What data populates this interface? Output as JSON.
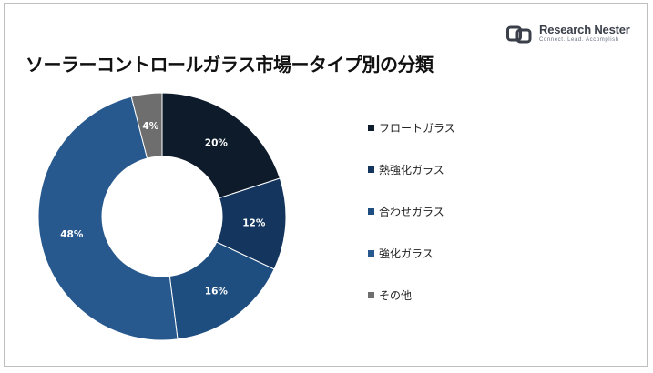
{
  "title": "ソーラーコントロールガラス市場ータイプ別の分類",
  "logo": {
    "name": "Research Nester",
    "tagline": "Connect. Lead. Accomplish"
  },
  "chart_data": {
    "type": "pie",
    "donut": true,
    "categories": [
      "フロートガラス",
      "熱強化ガラス",
      "合わせガラス",
      "強化ガラス",
      "その他"
    ],
    "values": [
      20,
      12,
      16,
      48,
      4
    ],
    "data_labels": [
      "20%",
      "12%",
      "16%",
      "48%",
      "4%"
    ],
    "colors": [
      "#0d1b2a",
      "#14365e",
      "#1e4d80",
      "#27598e",
      "#6e6e6e"
    ],
    "legend_placement": "right"
  }
}
